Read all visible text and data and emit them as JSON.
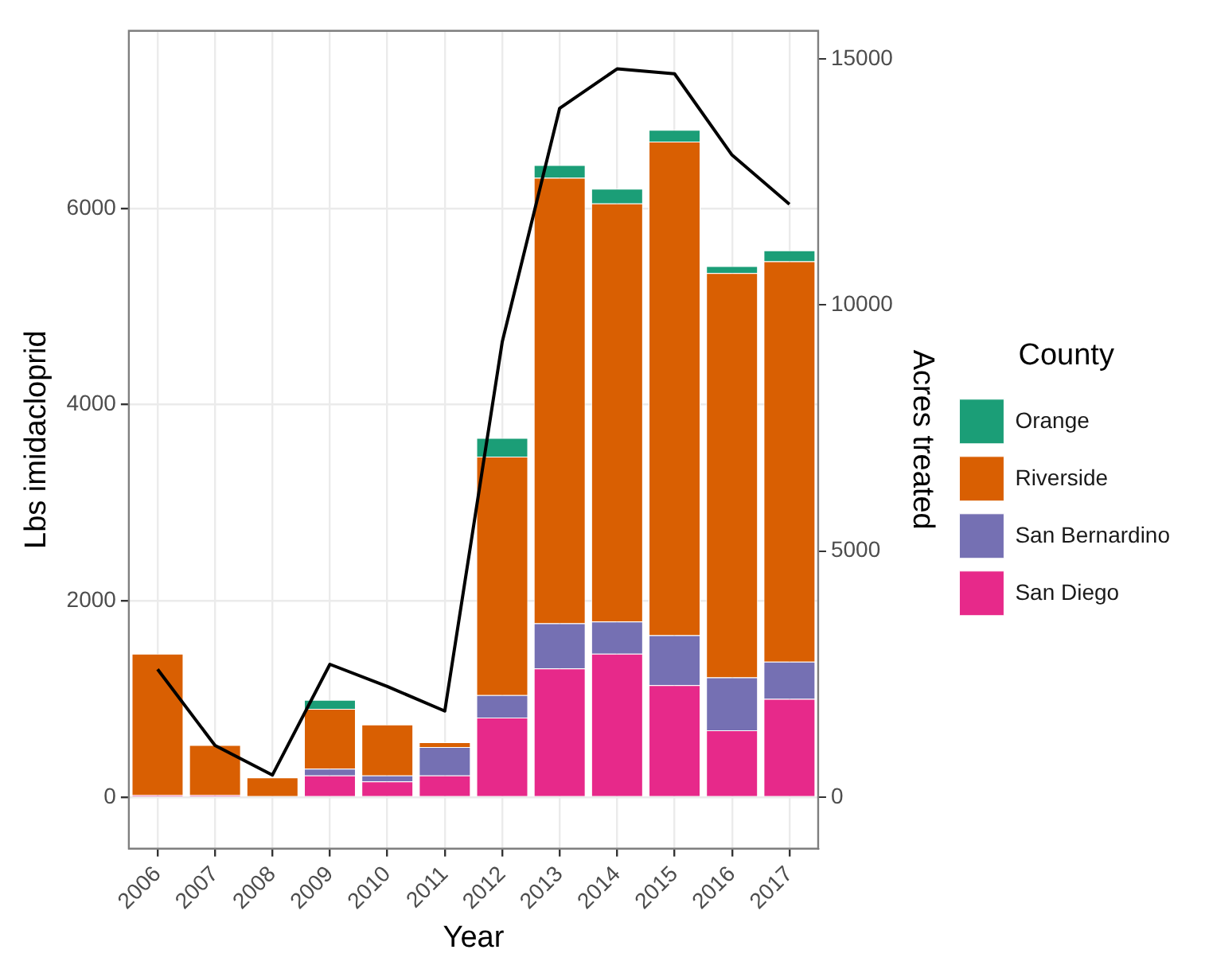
{
  "chart_data": {
    "type": "bar",
    "stacked": true,
    "xlabel": "Year",
    "ylabel": "Lbs imidacloprid",
    "y2label": "Acres treated",
    "legend_title": "County",
    "legend": "right",
    "grid": true,
    "categories": [
      "2006",
      "2007",
      "2008",
      "2009",
      "2010",
      "2011",
      "2012",
      "2013",
      "2014",
      "2015",
      "2016",
      "2017"
    ],
    "ylim": [
      -524,
      7808
    ],
    "yticks": [
      0,
      2000,
      4000,
      6000
    ],
    "y2lim": [
      -1044,
      15572
    ],
    "y2ticks": [
      0,
      5000,
      10000,
      15000
    ],
    "series": [
      {
        "name": "San Diego",
        "color": "#e7298a",
        "values": [
          20,
          20,
          0,
          220,
          160,
          220,
          810,
          1310,
          1460,
          1140,
          680,
          1000
        ]
      },
      {
        "name": "San Bernardino",
        "color": "#7570b3",
        "values": [
          0,
          0,
          0,
          70,
          60,
          290,
          230,
          460,
          330,
          510,
          540,
          380
        ]
      },
      {
        "name": "Riverside",
        "color": "#d95f02",
        "values": [
          1440,
          510,
          200,
          610,
          520,
          50,
          2430,
          4540,
          4260,
          5030,
          4120,
          4080
        ]
      },
      {
        "name": "Orange",
        "color": "#1b9e77",
        "values": [
          0,
          0,
          0,
          90,
          0,
          0,
          190,
          130,
          150,
          120,
          70,
          110
        ]
      },
      {
        "type": "line",
        "axis": "y2",
        "color": "#000000",
        "marker": "none",
        "values": [
          2600,
          1050,
          450,
          2700,
          2250,
          1750,
          9250,
          14000,
          14800,
          14700,
          13050,
          12050
        ]
      }
    ]
  }
}
